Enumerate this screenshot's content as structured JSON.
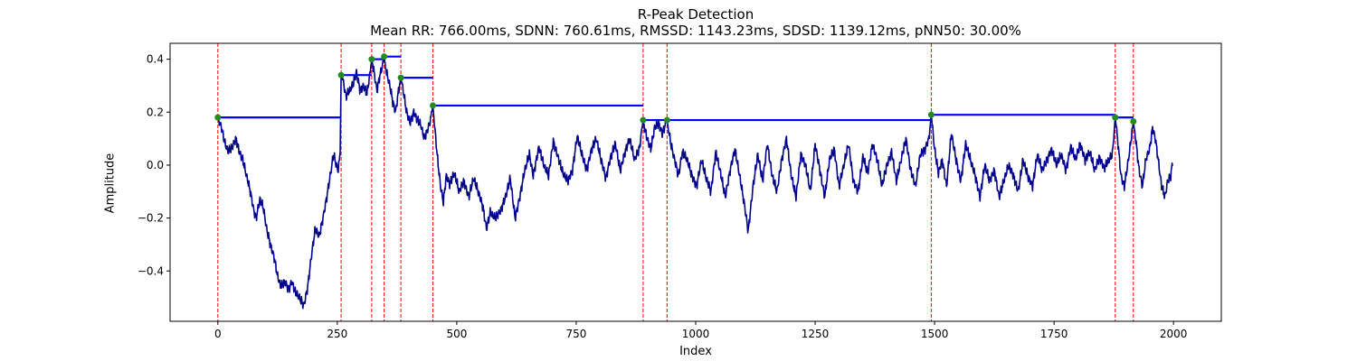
{
  "chart_data": {
    "type": "line",
    "title": "R-Peak Detection",
    "subtitle": "Mean RR: 766.00ms, SDNN: 760.61ms, RMSSD: 1143.23ms, SDSD: 1139.12ms, pNN50: 30.00%",
    "xlabel": "Index",
    "ylabel": "Amplitude",
    "xlim": [
      -100,
      2100
    ],
    "ylim": [
      -0.59,
      0.46
    ],
    "xticks": [
      0,
      250,
      500,
      750,
      1000,
      1250,
      1500,
      1750,
      2000
    ],
    "yticks": [
      -0.4,
      -0.2,
      0.0,
      0.2,
      0.4
    ],
    "grid": false,
    "colors": {
      "signal": "#00008b",
      "peak_line": "#ff0000",
      "peak_marker": "#228b22",
      "rr_segment": "#0000ff"
    },
    "signal_anchors": [
      [
        0,
        0.18
      ],
      [
        8,
        0.14
      ],
      [
        15,
        0.08
      ],
      [
        22,
        0.05
      ],
      [
        30,
        0.07
      ],
      [
        38,
        0.1
      ],
      [
        45,
        0.05
      ],
      [
        52,
        0.02
      ],
      [
        60,
        -0.04
      ],
      [
        68,
        -0.1
      ],
      [
        75,
        -0.17
      ],
      [
        80,
        -0.2
      ],
      [
        88,
        -0.13
      ],
      [
        95,
        -0.16
      ],
      [
        102,
        -0.24
      ],
      [
        110,
        -0.3
      ],
      [
        118,
        -0.35
      ],
      [
        125,
        -0.42
      ],
      [
        132,
        -0.46
      ],
      [
        140,
        -0.44
      ],
      [
        148,
        -0.47
      ],
      [
        155,
        -0.44
      ],
      [
        162,
        -0.48
      ],
      [
        170,
        -0.5
      ],
      [
        180,
        -0.53
      ],
      [
        188,
        -0.46
      ],
      [
        196,
        -0.34
      ],
      [
        204,
        -0.24
      ],
      [
        212,
        -0.27
      ],
      [
        220,
        -0.2
      ],
      [
        228,
        -0.12
      ],
      [
        236,
        -0.03
      ],
      [
        242,
        0.04
      ],
      [
        248,
        0.0
      ],
      [
        252,
        -0.02
      ],
      [
        256,
        0.05
      ],
      [
        258,
        0.34
      ],
      [
        262,
        0.32
      ],
      [
        268,
        0.26
      ],
      [
        275,
        0.28
      ],
      [
        282,
        0.3
      ],
      [
        290,
        0.35
      ],
      [
        298,
        0.28
      ],
      [
        305,
        0.3
      ],
      [
        312,
        0.27
      ],
      [
        318,
        0.34
      ],
      [
        322,
        0.4
      ],
      [
        327,
        0.35
      ],
      [
        333,
        0.28
      ],
      [
        338,
        0.33
      ],
      [
        345,
        0.38
      ],
      [
        348,
        0.41
      ],
      [
        353,
        0.35
      ],
      [
        360,
        0.3
      ],
      [
        366,
        0.24
      ],
      [
        372,
        0.2
      ],
      [
        378,
        0.28
      ],
      [
        383,
        0.33
      ],
      [
        388,
        0.28
      ],
      [
        395,
        0.2
      ],
      [
        402,
        0.16
      ],
      [
        410,
        0.2
      ],
      [
        418,
        0.17
      ],
      [
        425,
        0.15
      ],
      [
        432,
        0.1
      ],
      [
        440,
        0.14
      ],
      [
        446,
        0.18
      ],
      [
        450,
        0.225
      ],
      [
        455,
        0.12
      ],
      [
        460,
        0.02
      ],
      [
        466,
        -0.08
      ],
      [
        472,
        -0.14
      ],
      [
        478,
        -0.04
      ],
      [
        485,
        -0.07
      ],
      [
        495,
        -0.03
      ],
      [
        505,
        -0.1
      ],
      [
        515,
        -0.06
      ],
      [
        525,
        -0.12
      ],
      [
        535,
        -0.05
      ],
      [
        545,
        -0.1
      ],
      [
        555,
        -0.16
      ],
      [
        562,
        -0.24
      ],
      [
        570,
        -0.18
      ],
      [
        580,
        -0.2
      ],
      [
        592,
        -0.17
      ],
      [
        602,
        -0.12
      ],
      [
        612,
        -0.05
      ],
      [
        622,
        -0.2
      ],
      [
        632,
        -0.12
      ],
      [
        642,
        -0.02
      ],
      [
        652,
        0.04
      ],
      [
        660,
        -0.04
      ],
      [
        672,
        0.07
      ],
      [
        682,
        0.0
      ],
      [
        692,
        -0.04
      ],
      [
        702,
        0.09
      ],
      [
        712,
        0.03
      ],
      [
        722,
        -0.03
      ],
      [
        732,
        -0.06
      ],
      [
        742,
        -0.02
      ],
      [
        752,
        0.11
      ],
      [
        762,
        0.04
      ],
      [
        772,
        -0.02
      ],
      [
        782,
        0.06
      ],
      [
        792,
        0.1
      ],
      [
        802,
        0.02
      ],
      [
        812,
        -0.05
      ],
      [
        822,
        0.03
      ],
      [
        832,
        0.08
      ],
      [
        842,
        -0.02
      ],
      [
        852,
        0.05
      ],
      [
        862,
        0.1
      ],
      [
        872,
        0.02
      ],
      [
        882,
        0.06
      ],
      [
        890,
        0.17
      ],
      [
        898,
        0.1
      ],
      [
        906,
        0.06
      ],
      [
        914,
        0.14
      ],
      [
        922,
        0.16
      ],
      [
        930,
        0.12
      ],
      [
        940,
        0.17
      ],
      [
        948,
        0.08
      ],
      [
        956,
        0.02
      ],
      [
        964,
        -0.04
      ],
      [
        972,
        0.05
      ],
      [
        982,
        0.02
      ],
      [
        992,
        -0.04
      ],
      [
        1002,
        -0.08
      ],
      [
        1012,
        0.02
      ],
      [
        1022,
        -0.05
      ],
      [
        1032,
        -0.1
      ],
      [
        1042,
        0.05
      ],
      [
        1052,
        -0.03
      ],
      [
        1062,
        -0.12
      ],
      [
        1072,
        -0.02
      ],
      [
        1082,
        0.06
      ],
      [
        1092,
        -0.04
      ],
      [
        1102,
        -0.15
      ],
      [
        1110,
        -0.25
      ],
      [
        1120,
        -0.08
      ],
      [
        1130,
        0.04
      ],
      [
        1140,
        -0.06
      ],
      [
        1150,
        0.08
      ],
      [
        1160,
        -0.04
      ],
      [
        1170,
        -0.1
      ],
      [
        1180,
        0.02
      ],
      [
        1190,
        0.1
      ],
      [
        1200,
        -0.04
      ],
      [
        1210,
        -0.12
      ],
      [
        1220,
        0.04
      ],
      [
        1230,
        0.0
      ],
      [
        1240,
        -0.1
      ],
      [
        1250,
        0.08
      ],
      [
        1260,
        -0.02
      ],
      [
        1270,
        -0.12
      ],
      [
        1280,
        0.02
      ],
      [
        1290,
        0.06
      ],
      [
        1300,
        -0.08
      ],
      [
        1310,
        0.0
      ],
      [
        1320,
        0.08
      ],
      [
        1330,
        -0.06
      ],
      [
        1340,
        -0.1
      ],
      [
        1350,
        0.03
      ],
      [
        1360,
        -0.03
      ],
      [
        1370,
        0.08
      ],
      [
        1380,
        0.02
      ],
      [
        1390,
        -0.08
      ],
      [
        1400,
        0.0
      ],
      [
        1410,
        0.05
      ],
      [
        1420,
        -0.06
      ],
      [
        1430,
        0.02
      ],
      [
        1440,
        0.1
      ],
      [
        1450,
        -0.02
      ],
      [
        1460,
        -0.08
      ],
      [
        1470,
        0.04
      ],
      [
        1480,
        0.06
      ],
      [
        1488,
        0.1
      ],
      [
        1493,
        0.19
      ],
      [
        1500,
        0.06
      ],
      [
        1508,
        -0.03
      ],
      [
        1516,
        0.02
      ],
      [
        1525,
        -0.08
      ],
      [
        1535,
        0.12
      ],
      [
        1545,
        0.02
      ],
      [
        1555,
        -0.06
      ],
      [
        1565,
        0.08
      ],
      [
        1575,
        0.02
      ],
      [
        1585,
        -0.04
      ],
      [
        1595,
        -0.12
      ],
      [
        1605,
        0.0
      ],
      [
        1615,
        -0.06
      ],
      [
        1625,
        -0.02
      ],
      [
        1635,
        -0.12
      ],
      [
        1645,
        -0.06
      ],
      [
        1655,
        0.0
      ],
      [
        1665,
        -0.04
      ],
      [
        1675,
        -0.1
      ],
      [
        1685,
        0.02
      ],
      [
        1695,
        -0.04
      ],
      [
        1705,
        -0.08
      ],
      [
        1715,
        0.04
      ],
      [
        1725,
        -0.02
      ],
      [
        1735,
        0.02
      ],
      [
        1745,
        0.06
      ],
      [
        1755,
        0.0
      ],
      [
        1765,
        0.04
      ],
      [
        1775,
        -0.02
      ],
      [
        1785,
        0.07
      ],
      [
        1795,
        0.02
      ],
      [
        1805,
        0.08
      ],
      [
        1815,
        0.02
      ],
      [
        1825,
        0.05
      ],
      [
        1835,
        -0.02
      ],
      [
        1845,
        0.03
      ],
      [
        1855,
        -0.01
      ],
      [
        1865,
        0.02
      ],
      [
        1872,
        0.04
      ],
      [
        1878,
        0.18
      ],
      [
        1884,
        0.08
      ],
      [
        1890,
        -0.04
      ],
      [
        1897,
        -0.08
      ],
      [
        1904,
        0.0
      ],
      [
        1910,
        0.08
      ],
      [
        1916,
        0.165
      ],
      [
        1922,
        0.08
      ],
      [
        1928,
        -0.02
      ],
      [
        1935,
        -0.08
      ],
      [
        1942,
        0.02
      ],
      [
        1950,
        0.06
      ],
      [
        1956,
        0.14
      ],
      [
        1962,
        0.1
      ],
      [
        1968,
        0.02
      ],
      [
        1975,
        -0.08
      ],
      [
        1982,
        -0.12
      ],
      [
        1988,
        -0.06
      ],
      [
        1994,
        -0.04
      ],
      [
        1998,
        0.01
      ]
    ],
    "peaks": [
      {
        "index": 0,
        "amplitude": 0.18,
        "next_index": 258
      },
      {
        "index": 258,
        "amplitude": 0.34,
        "next_index": 322
      },
      {
        "index": 322,
        "amplitude": 0.4,
        "next_index": 348
      },
      {
        "index": 348,
        "amplitude": 0.41,
        "next_index": 383
      },
      {
        "index": 383,
        "amplitude": 0.33,
        "next_index": 450
      },
      {
        "index": 450,
        "amplitude": 0.225,
        "next_index": 890
      },
      {
        "index": 890,
        "amplitude": 0.17,
        "next_index": 940
      },
      {
        "index": 940,
        "amplitude": 0.17,
        "next_index": 1493
      },
      {
        "index": 1493,
        "amplitude": 0.19,
        "next_index": 1878
      },
      {
        "index": 1878,
        "amplitude": 0.18,
        "next_index": 1916
      },
      {
        "index": 1916,
        "amplitude": 0.165,
        "next_index": null
      }
    ]
  }
}
